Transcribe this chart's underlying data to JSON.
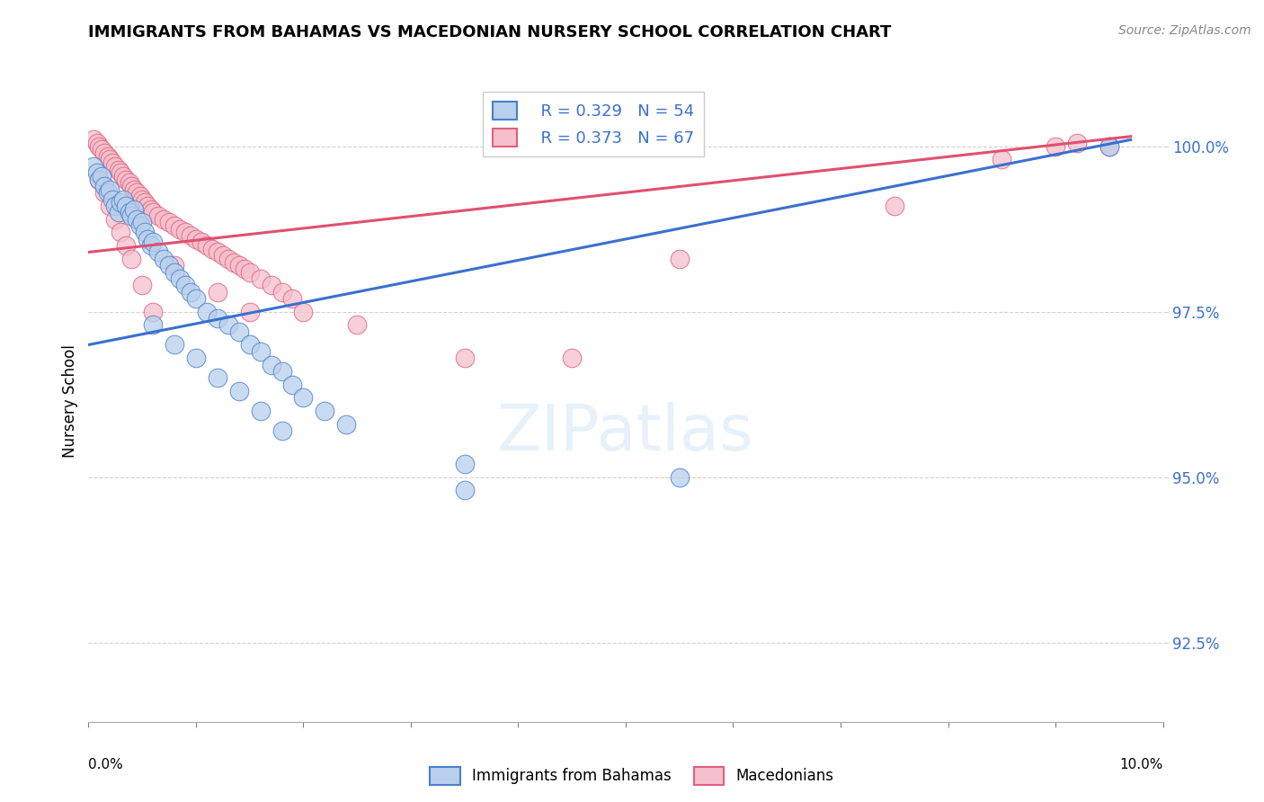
{
  "title": "IMMIGRANTS FROM BAHAMAS VS MACEDONIAN NURSERY SCHOOL CORRELATION CHART",
  "source": "Source: ZipAtlas.com",
  "ylabel": "Nursery School",
  "y_ticks": [
    92.5,
    95.0,
    97.5,
    100.0
  ],
  "y_tick_labels": [
    "92.5%",
    "95.0%",
    "97.5%",
    "100.0%"
  ],
  "xlim": [
    0.0,
    10.0
  ],
  "ylim": [
    91.3,
    101.0
  ],
  "legend_blue_r": "R = 0.329",
  "legend_blue_n": "N = 54",
  "legend_pink_r": "R = 0.373",
  "legend_pink_n": "N = 67",
  "legend_blue_label": "Immigrants from Bahamas",
  "legend_pink_label": "Macedonians",
  "blue_fill": "#b8d0ec",
  "pink_fill": "#f5c0cb",
  "blue_edge": "#4a7fcc",
  "pink_edge": "#e06080",
  "blue_line": "#3a70d0",
  "pink_line": "#e05070",
  "blue_scatter_x": [
    0.05,
    0.08,
    0.1,
    0.12,
    0.15,
    0.18,
    0.2,
    0.22,
    0.25,
    0.28,
    0.3,
    0.32,
    0.35,
    0.38,
    0.4,
    0.42,
    0.45,
    0.48,
    0.5,
    0.52,
    0.55,
    0.58,
    0.6,
    0.65,
    0.7,
    0.75,
    0.8,
    0.85,
    0.9,
    0.95,
    1.0,
    1.1,
    1.2,
    1.3,
    1.4,
    1.5,
    1.6,
    1.7,
    1.8,
    1.9,
    2.0,
    2.2,
    2.4,
    3.5,
    5.5,
    9.5,
    0.6,
    0.8,
    1.0,
    1.2,
    1.4,
    1.6,
    1.8,
    3.5
  ],
  "blue_scatter_y": [
    99.7,
    99.6,
    99.5,
    99.55,
    99.4,
    99.3,
    99.35,
    99.2,
    99.1,
    99.0,
    99.15,
    99.2,
    99.1,
    99.0,
    98.95,
    99.05,
    98.9,
    98.8,
    98.85,
    98.7,
    98.6,
    98.5,
    98.55,
    98.4,
    98.3,
    98.2,
    98.1,
    98.0,
    97.9,
    97.8,
    97.7,
    97.5,
    97.4,
    97.3,
    97.2,
    97.0,
    96.9,
    96.7,
    96.6,
    96.4,
    96.2,
    96.0,
    95.8,
    95.2,
    95.0,
    100.0,
    97.3,
    97.0,
    96.8,
    96.5,
    96.3,
    96.0,
    95.7,
    94.8
  ],
  "pink_scatter_x": [
    0.05,
    0.08,
    0.1,
    0.12,
    0.15,
    0.18,
    0.2,
    0.22,
    0.25,
    0.28,
    0.3,
    0.32,
    0.35,
    0.38,
    0.4,
    0.42,
    0.45,
    0.48,
    0.5,
    0.52,
    0.55,
    0.58,
    0.6,
    0.65,
    0.7,
    0.75,
    0.8,
    0.85,
    0.9,
    0.95,
    1.0,
    1.05,
    1.1,
    1.15,
    1.2,
    1.25,
    1.3,
    1.35,
    1.4,
    1.45,
    1.5,
    1.6,
    1.7,
    1.8,
    1.9,
    2.0,
    0.1,
    0.15,
    0.2,
    0.25,
    0.3,
    0.35,
    0.4,
    0.5,
    0.6,
    2.5,
    3.5,
    4.5,
    5.5,
    7.5,
    8.5,
    9.0,
    9.2,
    9.5,
    0.8,
    1.2,
    1.5
  ],
  "pink_scatter_y": [
    100.1,
    100.05,
    100.0,
    99.95,
    99.9,
    99.85,
    99.8,
    99.75,
    99.7,
    99.65,
    99.6,
    99.55,
    99.5,
    99.45,
    99.4,
    99.35,
    99.3,
    99.25,
    99.2,
    99.15,
    99.1,
    99.05,
    99.0,
    98.95,
    98.9,
    98.85,
    98.8,
    98.75,
    98.7,
    98.65,
    98.6,
    98.55,
    98.5,
    98.45,
    98.4,
    98.35,
    98.3,
    98.25,
    98.2,
    98.15,
    98.1,
    98.0,
    97.9,
    97.8,
    97.7,
    97.5,
    99.5,
    99.3,
    99.1,
    98.9,
    98.7,
    98.5,
    98.3,
    97.9,
    97.5,
    97.3,
    96.8,
    96.8,
    98.3,
    99.1,
    99.8,
    100.0,
    100.05,
    100.0,
    98.2,
    97.8,
    97.5
  ],
  "blue_trendline_x": [
    0.0,
    9.7
  ],
  "blue_trendline_y": [
    97.0,
    100.1
  ],
  "pink_trendline_x": [
    0.0,
    9.7
  ],
  "pink_trendline_y": [
    98.4,
    100.15
  ]
}
